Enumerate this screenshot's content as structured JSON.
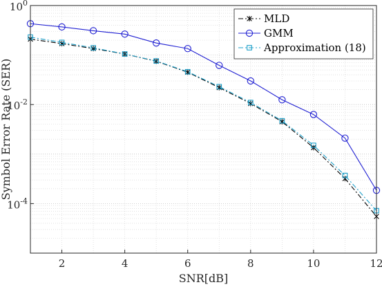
{
  "chart_data": {
    "type": "line",
    "xlabel": "SNR[dB]",
    "ylabel": "Symbol Error Rate (SER)",
    "xlim": [
      1,
      12
    ],
    "ylim": [
      1e-05,
      1
    ],
    "yscale": "log",
    "x_ticks": [
      2,
      4,
      6,
      8,
      10,
      12
    ],
    "y_ticks": [
      {
        "value": 1,
        "base": "10",
        "exp": "0"
      },
      {
        "value": 0.01,
        "base": "10",
        "exp": "-2"
      },
      {
        "value": 0.0001,
        "base": "10",
        "exp": "-4"
      }
    ],
    "grid": true,
    "legend_position": "top-right",
    "x": [
      1,
      2,
      3,
      4,
      5,
      6,
      7,
      8,
      9,
      10,
      11,
      12
    ],
    "series": [
      {
        "name": "MLD",
        "color": "#000000",
        "marker": "x-star",
        "dash": "dashdot",
        "values": [
          0.21,
          0.17,
          0.135,
          0.105,
          0.075,
          0.045,
          0.022,
          0.0105,
          0.0045,
          0.00135,
          0.00032,
          5.5e-05
        ]
      },
      {
        "name": "GMM",
        "color": "#1f1fd2",
        "marker": "circle",
        "dash": "solid",
        "values": [
          0.43,
          0.37,
          0.31,
          0.265,
          0.175,
          0.135,
          0.062,
          0.03,
          0.0125,
          0.0063,
          0.0021,
          0.000185
        ]
      },
      {
        "name": "Approximation (18)",
        "color": "#1c9fc9",
        "marker": "square",
        "dash": "dashdot",
        "values": [
          0.23,
          0.18,
          0.14,
          0.105,
          0.076,
          0.046,
          0.023,
          0.011,
          0.0047,
          0.0015,
          0.00037,
          7.2e-05
        ]
      }
    ]
  }
}
